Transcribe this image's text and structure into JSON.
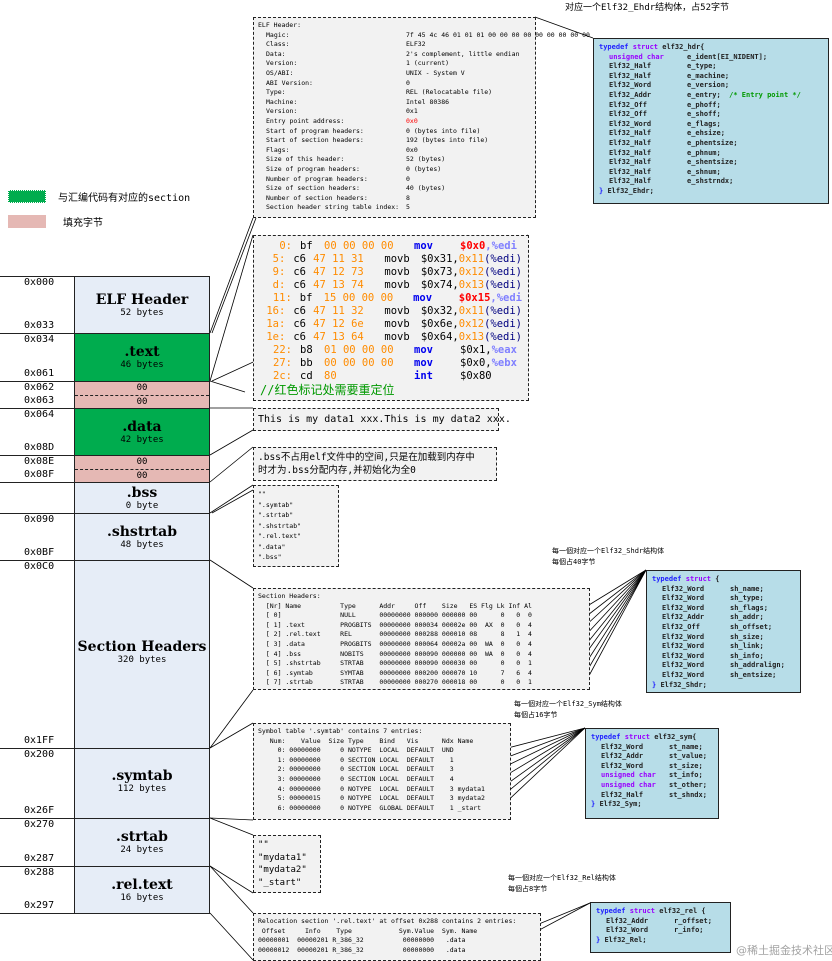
{
  "title_note": "对应一个Elf32_Ehdr结构体，占52字节",
  "legend": [
    {
      "label": "与汇编代码有对应的section",
      "color": "#00ac4e"
    },
    {
      "label": "填充字节",
      "color": "#e5b8b4"
    }
  ],
  "blocks": [
    {
      "name": "ELF Header",
      "size": "52 bytes",
      "start": "0x000",
      "end": "0x033"
    },
    {
      "name": ".text",
      "size": "46 bytes",
      "start": "0x034",
      "end": "0x061"
    },
    {
      "pad": [
        "00",
        "00"
      ],
      "start": "0x062",
      "end": "0x063"
    },
    {
      "name": ".data",
      "size": "42 bytes",
      "start": "0x064",
      "end": "0x08D"
    },
    {
      "pad": [
        "00",
        "00"
      ],
      "start": "0x08E",
      "end": "0x08F"
    },
    {
      "name": ".bss",
      "size": "0 byte"
    },
    {
      "name": ".shstrtab",
      "size": "48 bytes",
      "start": "0x090",
      "end": "0x0BF"
    },
    {
      "name": "Section Headers",
      "size": "320 bytes",
      "start": "0x0C0",
      "end": "0x1FF"
    },
    {
      "name": ".symtab",
      "size": "112 bytes",
      "start": "0x200",
      "end": "0x26F"
    },
    {
      "name": ".strtab",
      "size": "24 bytes",
      "start": "0x270",
      "end": "0x287"
    },
    {
      "name": ".rel.text",
      "size": "16 bytes",
      "start": "0x288",
      "end": "0x297"
    }
  ],
  "elf_header": {
    "title": "ELF Header:",
    "rows": [
      [
        "Magic:",
        "7f 45 4c 46 01 01 01 00 00 00 00 00 00 00 00 00"
      ],
      [
        "Class:",
        "ELF32"
      ],
      [
        "Data:",
        "2's complement, little endian"
      ],
      [
        "Version:",
        "1 (current)"
      ],
      [
        "OS/ABI:",
        "UNIX - System V"
      ],
      [
        "ABI Version:",
        "0"
      ],
      [
        "Type:",
        "REL (Relocatable file)"
      ],
      [
        "Machine:",
        "Intel 80386"
      ],
      [
        "Version:",
        "0x1"
      ],
      [
        "Entry point address:",
        "0x0"
      ],
      [
        "Start of program headers:",
        "0 (bytes into file)"
      ],
      [
        "Start of section headers:",
        "192 (bytes into file)"
      ],
      [
        "Flags:",
        "0x0"
      ],
      [
        "Size of this header:",
        "52 (bytes)"
      ],
      [
        "Size of program headers:",
        "0 (bytes)"
      ],
      [
        "Number of program headers:",
        "0"
      ],
      [
        "Size of section headers:",
        "40 (bytes)"
      ],
      [
        "Number of section headers:",
        "8"
      ],
      [
        "Section header string table index:",
        "5"
      ]
    ]
  },
  "disasm": {
    "rows": [
      {
        "a": "0:",
        "op": "bf",
        "bytes": "00 00 00 00",
        "m": "mov",
        "src": "$0x0",
        "reloc": true,
        "dst": "%edi"
      },
      {
        "a": "5:",
        "op": "c6",
        "bytes": "47 11 31",
        "m": "movb",
        "src": "$0x31,",
        "off": "0x11",
        "dst": "(%edi)"
      },
      {
        "a": "9:",
        "op": "c6",
        "bytes": "47 12 73",
        "m": "movb",
        "src": "$0x73,",
        "off": "0x12",
        "dst": "(%edi)"
      },
      {
        "a": "d:",
        "op": "c6",
        "bytes": "47 13 74",
        "m": "movb",
        "src": "$0x74,",
        "off": "0x13",
        "dst": "(%edi)"
      },
      {
        "a": "11:",
        "op": "bf",
        "bytes": "15 00 00 00",
        "m": "mov",
        "src": "$0x15",
        "reloc": true,
        "dst": "%edi"
      },
      {
        "a": "16:",
        "op": "c6",
        "bytes": "47 11 32",
        "m": "movb",
        "src": "$0x32,",
        "off": "0x11",
        "dst": "(%edi)"
      },
      {
        "a": "1a:",
        "op": "c6",
        "bytes": "47 12 6e",
        "m": "movb",
        "src": "$0x6e,",
        "off": "0x12",
        "dst": "(%edi)"
      },
      {
        "a": "1e:",
        "op": "c6",
        "bytes": "47 13 64",
        "m": "movb",
        "src": "$0x64,",
        "off": "0x13",
        "dst": "(%edi)"
      },
      {
        "a": "22:",
        "op": "b8",
        "bytes": "01 00 00 00",
        "m": "mov",
        "src": "$0x1,",
        "dst": "%eax"
      },
      {
        "a": "27:",
        "op": "bb",
        "bytes": "00 00 00 00",
        "m": "mov",
        "src": "$0x0,",
        "dst": "%ebx"
      },
      {
        "a": "2c:",
        "op": "cd",
        "bytes": "80",
        "m": "int",
        "src": "$0x80",
        "dst": ""
      }
    ],
    "comment": "//红色标记处需要重定位"
  },
  "data_text": "This is my data1 xxx.This is my data2 xxx.",
  "bss_note": ".bss不占用elf文件中的空间,只是在加载到内存中\n时才为.bss分配内存,并初始化为全0",
  "shstrtab": [
    "\"\"",
    "\".symtab\"",
    "\".strtab\"",
    "\".shstrtab\"",
    "\".rel.text\"",
    "\".data\"",
    "\".bss\""
  ],
  "section_headers": "Section Headers:\n  [Nr] Name          Type      Addr     Off    Size   ES Flg Lk Inf Al\n  [ 0]               NULL      00000000 000000 000000 00      0   0  0\n  [ 1] .text         PROGBITS  00000000 000034 00002e 00  AX  0   0  4\n  [ 2] .rel.text     REL       00000000 000288 000010 08      8   1  4\n  [ 3] .data         PROGBITS  00000000 000064 00002a 00  WA  0   0  4\n  [ 4] .bss          NOBITS    00000000 000090 000000 00  WA  0   0  4\n  [ 5] .shstrtab     STRTAB    00000000 000090 000030 00      0   0  1\n  [ 6] .symtab       SYMTAB    00000000 000200 000070 10      7   6  4\n  [ 7] .strtab       STRTAB    00000000 000270 000018 00      0   0  1",
  "symtab": "Symbol table '.symtab' contains 7 entries:\n   Num:    Value  Size Type    Bind   Vis      Ndx Name\n     0: 00000000     0 NOTYPE  LOCAL  DEFAULT  UND\n     1: 00000000     0 SECTION LOCAL  DEFAULT    1\n     2: 00000000     0 SECTION LOCAL  DEFAULT    3\n     3: 00000000     0 SECTION LOCAL  DEFAULT    4\n     4: 00000000     0 NOTYPE  LOCAL  DEFAULT    3 mydata1\n     5: 00000015     0 NOTYPE  LOCAL  DEFAULT    3 mydata2\n     6: 00000000     0 NOTYPE  GLOBAL DEFAULT    1 _start",
  "strtab": [
    "\"\"",
    "\"mydata1\"",
    "\"mydata2\"",
    "\"_start\""
  ],
  "reltext": "Relocation section '.rel.text' at offset 0x288 contains 2 entries:\n Offset     Info    Type            Sym.Value  Sym. Name\n00000001  00000201 R_386_32          00000000   .data\n00000012  00000201 R_386_32          00000000   .data",
  "notes": {
    "shdr": "每一個对应一个Elf32_Shdr结构体\n每個占40字节",
    "sym": "每一個对应一个Elf32_Sym结构体\n每個占16字节",
    "rel": "每一個对应一个Elf32_Rel结构体\n每個占8字节"
  },
  "structs": {
    "ehdr": {
      "head": "elf32_hdr{",
      "lines": [
        [
          "u",
          "unsigned char",
          "e_ident[EI_NIDENT];"
        ],
        [
          "",
          "Elf32_Half",
          "e_type;"
        ],
        [
          "",
          "Elf32_Half",
          "e_machine;"
        ],
        [
          "",
          "Elf32_Word",
          "e_version;"
        ],
        [
          "c",
          "Elf32_Addr",
          "e_entry;",
          "/* Entry point */"
        ],
        [
          "",
          "Elf32_Off",
          "e_phoff;"
        ],
        [
          "",
          "Elf32_Off",
          "e_shoff;"
        ],
        [
          "",
          "Elf32_Word",
          "e_flags;"
        ],
        [
          "",
          "Elf32_Half",
          "e_ehsize;"
        ],
        [
          "",
          "Elf32_Half",
          "e_phentsize;"
        ],
        [
          "",
          "Elf32_Half",
          "e_phnum;"
        ],
        [
          "",
          "Elf32_Half",
          "e_shentsize;"
        ],
        [
          "",
          "Elf32_Half",
          "e_shnum;"
        ],
        [
          "",
          "Elf32_Half",
          "e_shstrndx;"
        ]
      ],
      "tail": "Elf32_Ehdr;"
    },
    "shdr": {
      "head": "{",
      "lines": [
        [
          "",
          "Elf32_Word",
          "sh_name;"
        ],
        [
          "",
          "Elf32_Word",
          "sh_type;"
        ],
        [
          "",
          "Elf32_Word",
          "sh_flags;"
        ],
        [
          "",
          "Elf32_Addr",
          "sh_addr;"
        ],
        [
          "",
          "Elf32_Off",
          "sh_offset;"
        ],
        [
          "",
          "Elf32_Word",
          "sh_size;"
        ],
        [
          "",
          "Elf32_Word",
          "sh_link;"
        ],
        [
          "",
          "Elf32_Word",
          "sh_info;"
        ],
        [
          "",
          "Elf32_Word",
          "sh_addralign;"
        ],
        [
          "",
          "Elf32_Word",
          "sh_entsize;"
        ]
      ],
      "tail": "Elf32_Shdr;"
    },
    "sym": {
      "head": "elf32_sym{",
      "lines": [
        [
          "",
          "Elf32_Word",
          "st_name;"
        ],
        [
          "",
          "Elf32_Addr",
          "st_value;"
        ],
        [
          "",
          "Elf32_Word",
          "st_size;"
        ],
        [
          "u",
          "unsigned char",
          "st_info;"
        ],
        [
          "u",
          "unsigned char",
          "st_other;"
        ],
        [
          "",
          "Elf32_Half",
          "st_shndx;"
        ]
      ],
      "tail": "Elf32_Sym;"
    },
    "rel": {
      "head": "elf32_rel {",
      "lines": [
        [
          "",
          "Elf32_Addr",
          "r_offset;"
        ],
        [
          "",
          "Elf32_Word",
          "r_info;"
        ]
      ],
      "tail": "Elf32_Rel;"
    }
  },
  "keywords": {
    "typedef": "typedef",
    "struct": "struct"
  },
  "watermark": "@稀土掘金技术社区"
}
